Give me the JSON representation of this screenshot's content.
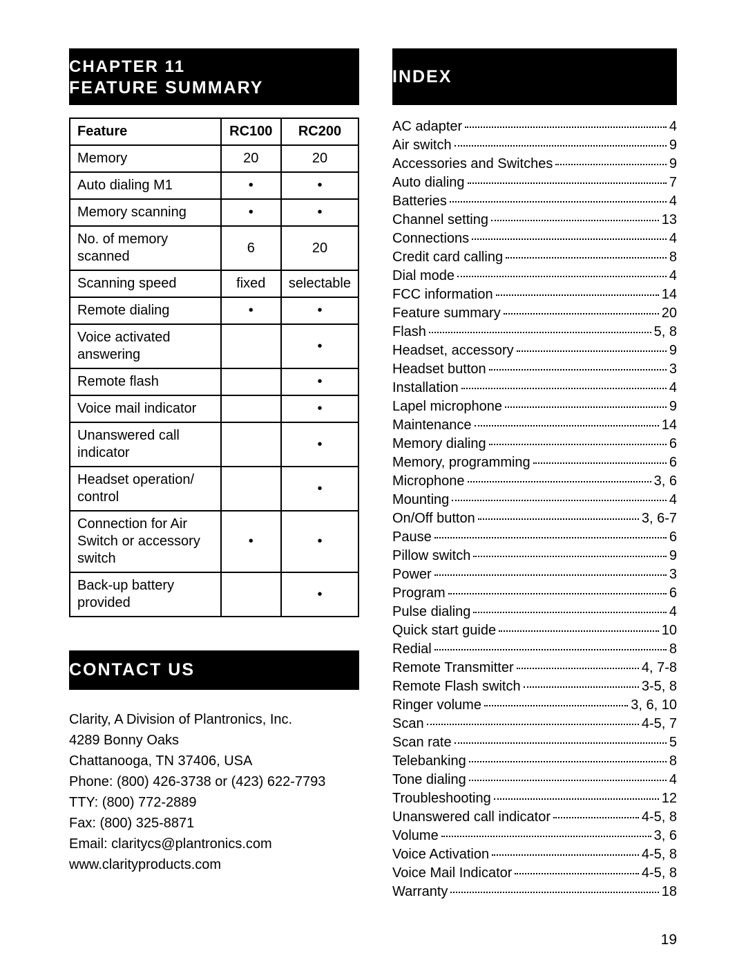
{
  "header": {
    "chapter_line": "CHAPTER 11",
    "title_line": "FEATURE SUMMARY",
    "index_title": "INDEX"
  },
  "feature_table": {
    "columns": [
      "Feature",
      "RC100",
      "RC200"
    ],
    "rows": [
      {
        "feature": "Memory",
        "rc100": "20",
        "rc200": "20"
      },
      {
        "feature": "Auto dialing M1",
        "rc100": "•",
        "rc200": "•"
      },
      {
        "feature": "Memory scanning",
        "rc100": "•",
        "rc200": "•"
      },
      {
        "feature": "No. of memory scanned",
        "rc100": "6",
        "rc200": "20"
      },
      {
        "feature": "Scanning speed",
        "rc100": "fixed",
        "rc200": "selectable"
      },
      {
        "feature": "Remote dialing",
        "rc100": "•",
        "rc200": "•"
      },
      {
        "feature": "Voice activated answering",
        "rc100": "",
        "rc200": "•"
      },
      {
        "feature": "Remote flash",
        "rc100": "",
        "rc200": "•"
      },
      {
        "feature": "Voice mail indicator",
        "rc100": "",
        "rc200": "•"
      },
      {
        "feature": "Unanswered call indicator",
        "rc100": "",
        "rc200": "•"
      },
      {
        "feature": "Headset operation/ control",
        "rc100": "",
        "rc200": "•"
      },
      {
        "feature": "Connection for Air Switch or accessory switch",
        "rc100": "•",
        "rc200": "•"
      },
      {
        "feature": "Back-up battery provided",
        "rc100": "",
        "rc200": "•"
      }
    ]
  },
  "contact": {
    "title": "CONTACT US",
    "lines": [
      "Clarity, A Division of Plantronics, Inc.",
      "4289 Bonny Oaks",
      "Chattanooga, TN 37406, USA",
      "Phone: (800) 426-3738 or (423) 622-7793",
      "TTY: (800) 772-2889",
      "Fax: (800) 325-8871",
      "Email: claritycs@plantronics.com",
      "www.clarityproducts.com"
    ]
  },
  "index": [
    {
      "term": "AC adapter",
      "page": "4"
    },
    {
      "term": "Air switch",
      "page": "9"
    },
    {
      "term": "Accessories and Switches",
      "page": "9"
    },
    {
      "term": "Auto dialing",
      "page": "7"
    },
    {
      "term": "Batteries",
      "page": "4"
    },
    {
      "term": "Channel setting",
      "page": "13"
    },
    {
      "term": "Connections",
      "page": "4"
    },
    {
      "term": "Credit card calling",
      "page": "8"
    },
    {
      "term": "Dial mode",
      "page": "4"
    },
    {
      "term": "FCC information",
      "page": "14"
    },
    {
      "term": "Feature summary",
      "page": "20"
    },
    {
      "term": "Flash",
      "page": "5, 8"
    },
    {
      "term": "Headset, accessory",
      "page": "9"
    },
    {
      "term": "Headset button",
      "page": "3"
    },
    {
      "term": "Installation",
      "page": "4"
    },
    {
      "term": "Lapel microphone",
      "page": "9"
    },
    {
      "term": "Maintenance",
      "page": "14"
    },
    {
      "term": "Memory dialing",
      "page": "6"
    },
    {
      "term": "Memory, programming",
      "page": "6"
    },
    {
      "term": "Microphone",
      "page": "3, 6"
    },
    {
      "term": "Mounting",
      "page": "4"
    },
    {
      "term": "On/Off button",
      "page": "3, 6-7"
    },
    {
      "term": "Pause",
      "page": "6"
    },
    {
      "term": "Pillow switch",
      "page": "9"
    },
    {
      "term": "Power",
      "page": "3"
    },
    {
      "term": "Program",
      "page": "6"
    },
    {
      "term": "Pulse dialing",
      "page": "4"
    },
    {
      "term": "Quick start guide",
      "page": "10"
    },
    {
      "term": "Redial",
      "page": "8"
    },
    {
      "term": "Remote Transmitter",
      "page": "4, 7-8"
    },
    {
      "term": "Remote Flash switch",
      "page": "3-5, 8"
    },
    {
      "term": "Ringer volume",
      "page": "3, 6, 10"
    },
    {
      "term": "Scan",
      "page": "4-5, 7"
    },
    {
      "term": "Scan rate",
      "page": "5"
    },
    {
      "term": "Telebanking",
      "page": "8"
    },
    {
      "term": "Tone dialing",
      "page": "4"
    },
    {
      "term": "Troubleshooting",
      "page": "12"
    },
    {
      "term": "Unanswered call indicator",
      "page": "4-5, 8"
    },
    {
      "term": "Volume",
      "page": "3, 6"
    },
    {
      "term": "Voice Activation",
      "page": "4-5, 8"
    },
    {
      "term": "Voice Mail Indicator",
      "page": "4-5, 8"
    },
    {
      "term": "Warranty",
      "page": "18"
    }
  ],
  "page_number": "19"
}
